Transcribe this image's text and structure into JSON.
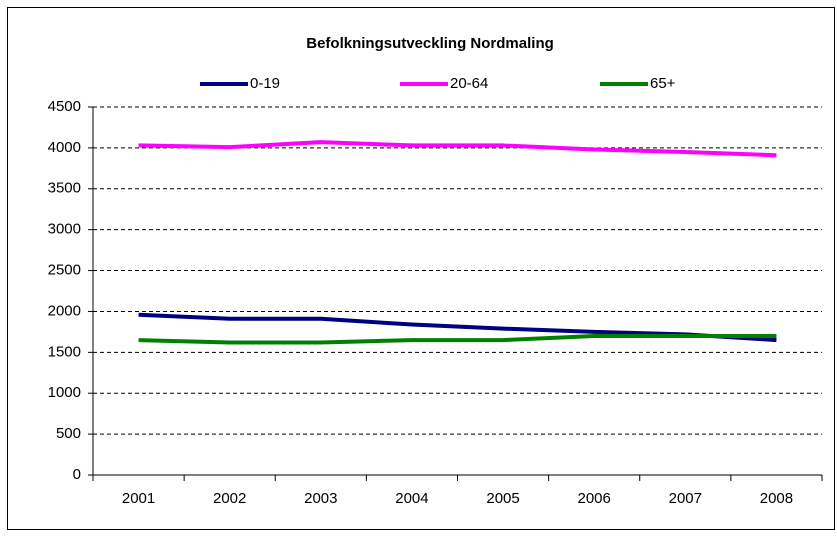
{
  "chart_data": {
    "type": "line",
    "title": "Befolkningsutveckling Nordmaling",
    "categories": [
      "2001",
      "2002",
      "2003",
      "2004",
      "2005",
      "2006",
      "2007",
      "2008"
    ],
    "series": [
      {
        "name": "0-19",
        "color": "#000080",
        "values": [
          1960,
          1910,
          1910,
          1840,
          1790,
          1750,
          1720,
          1650
        ]
      },
      {
        "name": "20-64",
        "color": "#ff00ff",
        "values": [
          4030,
          4010,
          4070,
          4030,
          4030,
          3980,
          3950,
          3910
        ]
      },
      {
        "name": "65+",
        "color": "#008000",
        "values": [
          1650,
          1620,
          1620,
          1650,
          1650,
          1700,
          1700,
          1700
        ]
      }
    ],
    "ylim": [
      0,
      4500
    ],
    "yticks": [
      0,
      500,
      1000,
      1500,
      2000,
      2500,
      3000,
      3500,
      4000,
      4500
    ],
    "grid": true,
    "legend": "top"
  }
}
